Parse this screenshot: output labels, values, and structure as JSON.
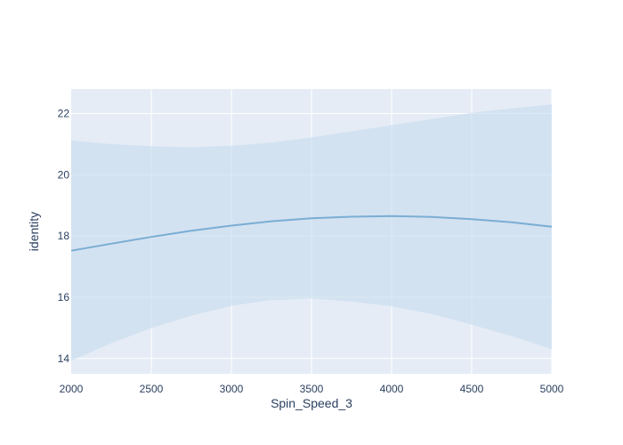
{
  "chart_data": {
    "type": "line",
    "title": "",
    "xlabel": "Spin_Speed_3",
    "ylabel": "identity",
    "xlim": [
      2000,
      5000
    ],
    "ylim": [
      13.5,
      22.8
    ],
    "x_ticks": [
      2000,
      2500,
      3000,
      3500,
      4000,
      4500,
      5000
    ],
    "y_ticks": [
      14,
      16,
      18,
      20,
      22
    ],
    "grid": true,
    "colors": {
      "plot_bg": "#e5ecf6",
      "grid": "#ffffff",
      "line": "#7aadd4",
      "band": "#c6dcee",
      "text": "#2a3f5f"
    },
    "series": [
      {
        "x": [
          2000,
          2250,
          2500,
          2750,
          3000,
          3250,
          3500,
          3750,
          4000,
          4250,
          4500,
          4750,
          5000
        ],
        "values": [
          17.52,
          17.75,
          17.97,
          18.17,
          18.34,
          18.48,
          18.58,
          18.63,
          18.65,
          18.62,
          18.55,
          18.45,
          18.3
        ],
        "upper": [
          21.12,
          21.0,
          20.93,
          20.9,
          20.95,
          21.05,
          21.22,
          21.42,
          21.62,
          21.82,
          22.02,
          22.17,
          22.3
        ],
        "lower": [
          13.92,
          14.5,
          14.99,
          15.4,
          15.72,
          15.91,
          15.96,
          15.86,
          15.7,
          15.45,
          15.1,
          14.73,
          14.3
        ]
      }
    ]
  }
}
